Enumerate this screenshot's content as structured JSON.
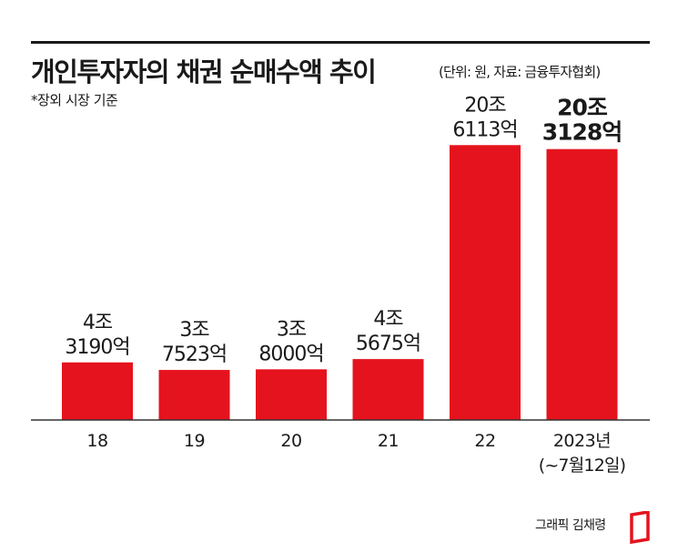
{
  "header": {
    "title": "개인투자자의 채권 순매수액 추이",
    "unit_source": "(단위: 원, 자료: 금융투자협회)",
    "note": "*장외 시장 기준"
  },
  "footer": {
    "credit": "그래픽 김채령"
  },
  "colors": {
    "bar": "#e5131d",
    "text": "#1a1a1a",
    "axis": "#333333"
  },
  "chart_data": {
    "type": "bar",
    "title": "개인투자자의 채권 순매수액 추이",
    "unit": "원",
    "source": "금융투자협회",
    "categories": [
      "18",
      "19",
      "20",
      "21",
      "22",
      "2023년"
    ],
    "category_sublabels": [
      "",
      "",
      "",
      "",
      "",
      "(~7월12일)"
    ],
    "values": [
      4.319,
      3.7523,
      3.8,
      4.5675,
      20.6113,
      20.3128
    ],
    "value_unit": "조 원",
    "data_labels": [
      [
        "4조",
        "3190억"
      ],
      [
        "3조",
        "7523억"
      ],
      [
        "3조",
        "8000억"
      ],
      [
        "4조",
        "5675억"
      ],
      [
        "20조",
        "6113억"
      ],
      [
        "20조",
        "3128억"
      ]
    ],
    "highlight_index": 5,
    "ylim": [
      0,
      23.5
    ],
    "grid": false,
    "legend": "none"
  }
}
